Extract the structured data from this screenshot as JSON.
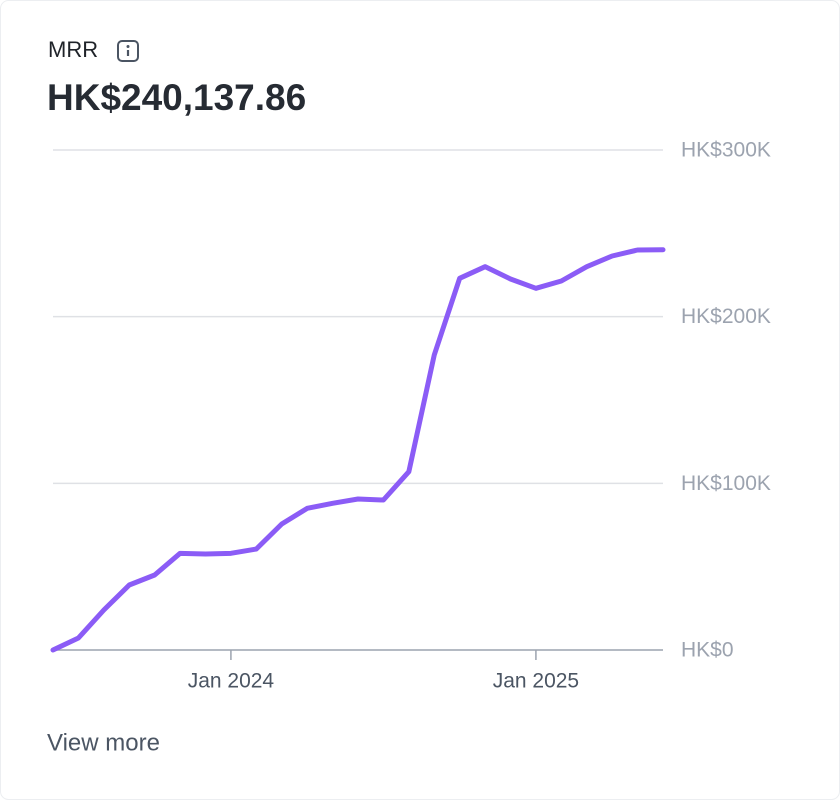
{
  "chart_data": {
    "type": "line",
    "title": "MRR",
    "subtitle": "HK$240,137.86",
    "x": [
      "2023-06",
      "2023-07",
      "2023-08",
      "2023-09",
      "2023-10",
      "2023-11",
      "2023-12",
      "2024-01",
      "2024-02",
      "2024-03",
      "2024-04",
      "2024-05",
      "2024-06",
      "2024-07",
      "2024-08",
      "2024-09",
      "2024-10",
      "2024-11",
      "2024-12",
      "2025-01",
      "2025-02",
      "2025-03",
      "2025-04",
      "2025-05",
      "2025-06"
    ],
    "series": [
      {
        "name": "MRR",
        "color": "#8b5cf6",
        "values": [
          0,
          7200,
          24000,
          39000,
          45000,
          58000,
          57600,
          58000,
          60600,
          75600,
          85000,
          88000,
          90600,
          90000,
          107000,
          177000,
          223000,
          230000,
          222600,
          217000,
          221400,
          230000,
          236400,
          240000,
          240137.86
        ]
      }
    ],
    "xlim": [
      "2023-06",
      "2025-06"
    ],
    "xticks": [
      {
        "value": "2024-01",
        "label": "Jan 2024"
      },
      {
        "value": "2025-01",
        "label": "Jan 2025"
      }
    ],
    "ylim": [
      0,
      300000
    ],
    "yticks": [
      {
        "value": 0,
        "label": "HK$0"
      },
      {
        "value": 100000,
        "label": "HK$100K"
      },
      {
        "value": 200000,
        "label": "HK$200K"
      },
      {
        "value": 300000,
        "label": "HK$300K"
      }
    ],
    "grid": true
  },
  "link": "View more"
}
